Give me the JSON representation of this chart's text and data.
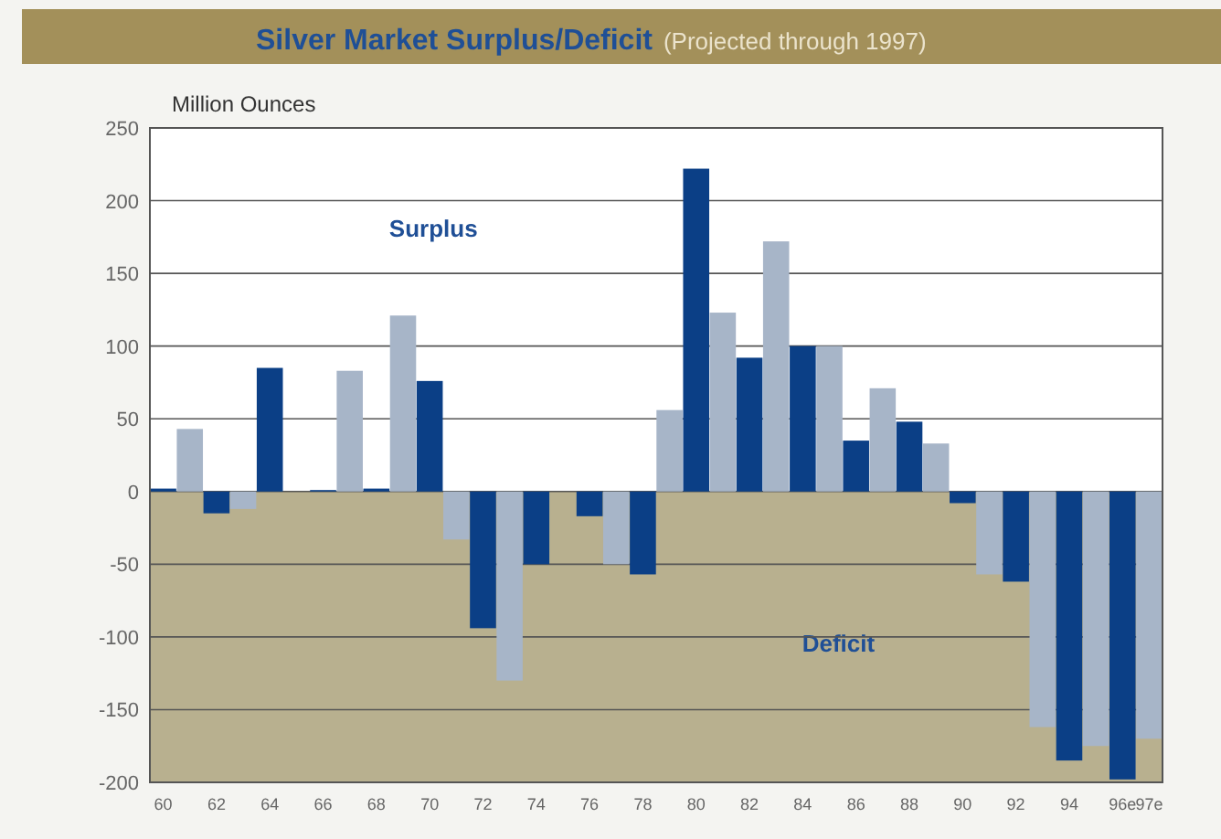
{
  "chart_data": {
    "type": "bar",
    "title": "Silver Market Surplus/Deficit",
    "subtitle": "(Projected through 1997)",
    "ylabel": "Million Ounces",
    "categories": [
      "60",
      null,
      "62",
      null,
      "64",
      null,
      "66",
      null,
      "68",
      null,
      "70",
      null,
      "72",
      null,
      "74",
      null,
      "76",
      null,
      "78",
      null,
      "80",
      null,
      "82",
      null,
      "84",
      null,
      "86",
      null,
      "88",
      null,
      "90",
      null,
      "92",
      null,
      "94",
      null,
      "96e",
      "97e"
    ],
    "values": [
      2,
      43,
      -15,
      -12,
      85,
      null,
      1,
      83,
      2,
      121,
      76,
      -33,
      -94,
      -130,
      -50,
      null,
      -17,
      -50,
      -57,
      56,
      222,
      123,
      92,
      172,
      100,
      100,
      35,
      71,
      48,
      33,
      -8,
      -57,
      -62,
      -162,
      -185,
      -175,
      -198,
      -170
    ],
    "colors": [
      "#0b3f86",
      "#a7b5c8",
      "#0b3f86",
      "#a7b5c8",
      "#0b3f86",
      null,
      "#0b3f86",
      "#a7b5c8",
      "#0b3f86",
      "#a7b5c8",
      "#0b3f86",
      "#a7b5c8",
      "#0b3f86",
      "#a7b5c8",
      "#0b3f86",
      null,
      "#0b3f86",
      "#a7b5c8",
      "#0b3f86",
      "#a7b5c8",
      "#0b3f86",
      "#a7b5c8",
      "#0b3f86",
      "#a7b5c8",
      "#0b3f86",
      "#a7b5c8",
      "#0b3f86",
      "#a7b5c8",
      "#0b3f86",
      "#a7b5c8",
      "#0b3f86",
      "#a7b5c8",
      "#0b3f86",
      "#a7b5c8",
      "#0b3f86",
      "#a7b5c8",
      "#0b3f86",
      "#a7b5c8"
    ],
    "ylim": [
      -200,
      250
    ],
    "yticks": [
      -200,
      -150,
      -100,
      -50,
      0,
      50,
      100,
      150,
      200,
      250
    ],
    "grid": "y",
    "bands": [
      {
        "axis": "y",
        "from": 0,
        "to": 250,
        "label": "Surplus",
        "color": "#ffffff"
      },
      {
        "axis": "y",
        "from": -200,
        "to": 0,
        "label": "Deficit",
        "color": "#b8b08f"
      }
    ]
  }
}
